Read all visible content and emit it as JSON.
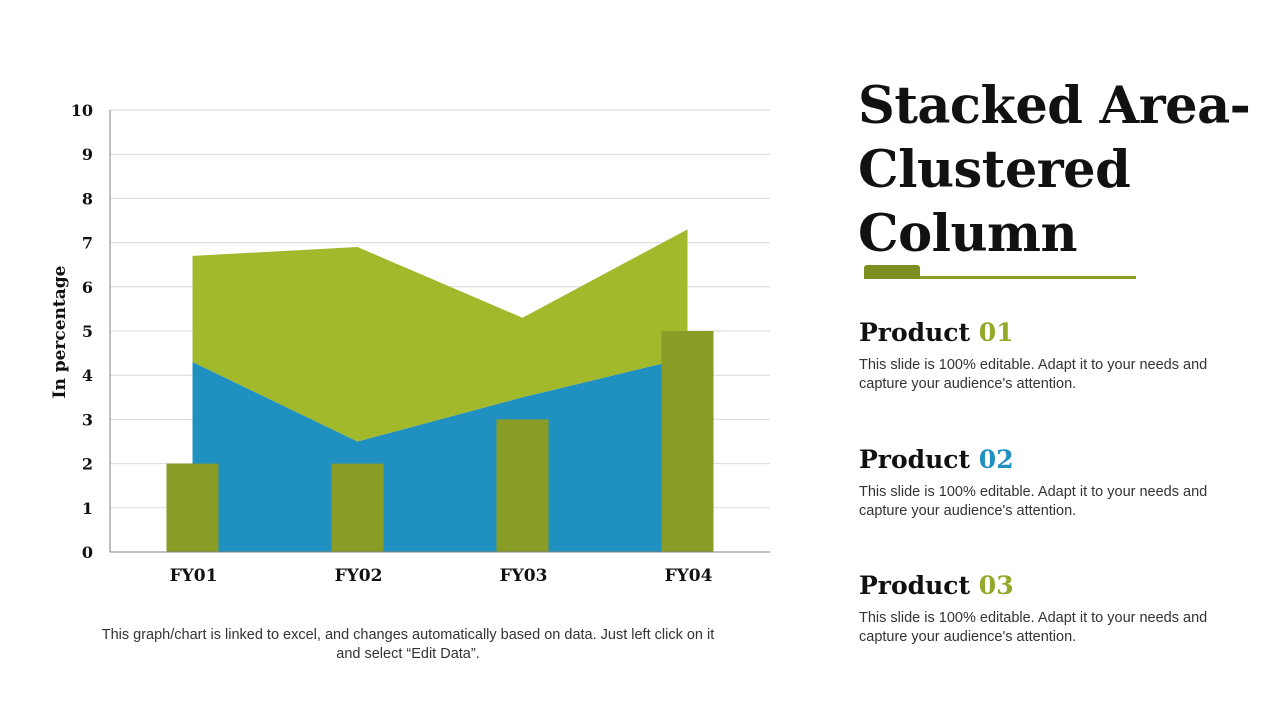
{
  "slide": {
    "title": "Stacked Area-Clustered Column",
    "footnote": "This graph/chart is linked to excel, and changes automatically  based on data. Just left click on it and select “Edit Data”."
  },
  "products": [
    {
      "label": "Product",
      "number": "01",
      "color": "#94a82a",
      "description": "This slide is 100% editable. Adapt it to your needs and capture your audience's attention."
    },
    {
      "label": "Product",
      "number": "02",
      "color": "#2090c0",
      "description": "This slide is 100% editable. Adapt it to your needs and capture your audience's attention."
    },
    {
      "label": "Product",
      "number": "03",
      "color": "#94a82a",
      "description": "This slide is 100% editable. Adapt it to your needs and capture your audience's attention."
    }
  ],
  "chart_data": {
    "type": "area+bar",
    "categories": [
      "FY01",
      "FY02",
      "FY03",
      "FY04"
    ],
    "ylabel": "In percentage",
    "xlabel": "",
    "ylim": [
      0,
      10
    ],
    "yticks": [
      "0",
      "1",
      "2",
      "3",
      "4",
      "5",
      "6",
      "7",
      "8",
      "9",
      "10"
    ],
    "grid": true,
    "stacked_area_series": [
      {
        "name": "",
        "color": "#1f90bf",
        "values": [
          4.3,
          2.5,
          3.5,
          4.4
        ]
      },
      {
        "name": "",
        "color": "#a2b92c",
        "values": [
          2.4,
          4.4,
          1.8,
          2.9
        ]
      }
    ],
    "column_series": [
      {
        "name": "",
        "color": "#889c26",
        "values": [
          2,
          2,
          3,
          5
        ]
      }
    ]
  }
}
